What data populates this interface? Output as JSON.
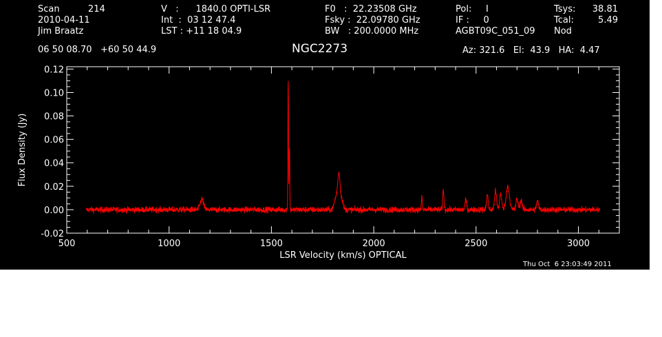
{
  "header": {
    "col1": {
      "scan": "Scan          214",
      "date": "2010-04-11",
      "observer": "Jim Braatz"
    },
    "col2": {
      "velocity": "V   :      1840.0 OPTI-LSR",
      "int": "Int  :  03 12 47.4",
      "lst": "LST : +11 18 04.9"
    },
    "col3": {
      "f0": "F0   :  22.23508 GHz",
      "fsky": "Fsky :  22.09780 GHz",
      "bw": "BW   : 200.0000 MHz"
    },
    "col4": {
      "pol": "Pol:     I",
      "if": "IF :     0",
      "project": "AGBT09C_051_09"
    },
    "col5": {
      "tsys_label": "Tsys:",
      "tsys": "38.81",
      "tcal_label": "Tcal:",
      "tcal": "5.49",
      "procedure": "Nod"
    },
    "coords": "06 50 08.70   +60 50 44.9",
    "source": "NGC2273",
    "pointing": "Az: 321.6   El:  43.9   HA:  4.47",
    "timestamp": "Thu Oct  6 23:03:49 2011"
  },
  "colors": {
    "background": "#000000",
    "axes": "#ffffff",
    "trace": "#ff0000"
  },
  "chart_data": {
    "type": "line",
    "title": "NGC2273",
    "xlabel": "LSR Velocity (km/s) OPTICAL",
    "ylabel": "Flux Density (Jy)",
    "xlim": [
      500,
      3200
    ],
    "ylim": [
      -0.02,
      0.122
    ],
    "xticks": [
      500,
      1000,
      1500,
      2000,
      2500,
      3000
    ],
    "xtick_labels": [
      "500",
      "1000",
      "1500",
      "2000",
      "2500",
      "3000"
    ],
    "yticks": [
      -0.02,
      0.0,
      0.02,
      0.04,
      0.06,
      0.08,
      0.1,
      0.12
    ],
    "ytick_labels": [
      "-0.02",
      "0.00",
      "0.02",
      "0.04",
      "0.06",
      "0.08",
      "0.10",
      "0.12"
    ],
    "series": [
      {
        "x_range": [
          595,
          3105
        ],
        "noise_rms": 0.0018,
        "features": [
          {
            "x": 1160,
            "y": 0.009,
            "width": 8
          },
          {
            "x": 1582,
            "y": 0.113,
            "width": 1.5
          },
          {
            "x": 1588,
            "y": 0.055,
            "width": 1.5
          },
          {
            "x": 1830,
            "y": 0.03,
            "width": 6
          },
          {
            "x": 1815,
            "y": 0.01,
            "width": 8
          },
          {
            "x": 1845,
            "y": 0.008,
            "width": 6
          },
          {
            "x": 2235,
            "y": 0.012,
            "width": 2
          },
          {
            "x": 2340,
            "y": 0.017,
            "width": 3
          },
          {
            "x": 2450,
            "y": 0.008,
            "width": 4
          },
          {
            "x": 2555,
            "y": 0.013,
            "width": 4
          },
          {
            "x": 2595,
            "y": 0.016,
            "width": 5
          },
          {
            "x": 2620,
            "y": 0.014,
            "width": 5
          },
          {
            "x": 2655,
            "y": 0.02,
            "width": 8
          },
          {
            "x": 2700,
            "y": 0.009,
            "width": 5
          },
          {
            "x": 2720,
            "y": 0.008,
            "width": 5
          },
          {
            "x": 2800,
            "y": 0.007,
            "width": 5
          }
        ]
      }
    ]
  }
}
